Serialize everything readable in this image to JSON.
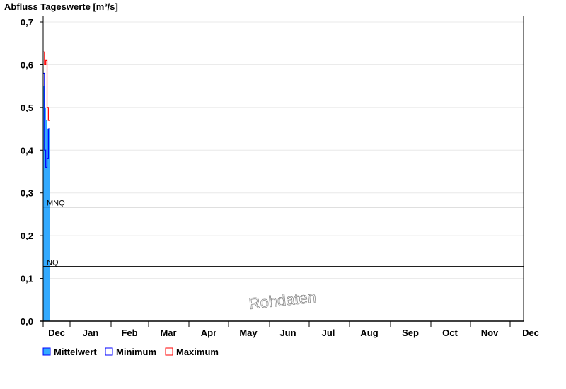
{
  "chart_data": {
    "type": "line",
    "title": "Abfluss Tageswerte [m³/s]",
    "ylim": [
      0,
      0.7
    ],
    "yticks": [
      "0,0",
      "0,1",
      "0,2",
      "0,3",
      "0,4",
      "0,5",
      "0,6",
      "0,7"
    ],
    "xticks": [
      "Dec",
      "Jan",
      "Feb",
      "Mar",
      "Apr",
      "May",
      "Jun",
      "Jul",
      "Aug",
      "Sep",
      "Oct",
      "Nov",
      "Dec"
    ],
    "grid": true,
    "legend_placement": "bottom-left",
    "series": [
      {
        "name": "Mittelwert",
        "color": "#33aaff",
        "style": "bar",
        "values": [
          0.55,
          0.5,
          0.47,
          0.45,
          0.45
        ]
      },
      {
        "name": "Minimum",
        "color": "#0000ff",
        "style": "step",
        "values": [
          0.58,
          0.4,
          0.36,
          0.38,
          0.45
        ]
      },
      {
        "name": "Maximum",
        "color": "#ff0000",
        "style": "step",
        "values": [
          0.63,
          0.6,
          0.61,
          0.5,
          0.47
        ]
      }
    ],
    "reference_lines": [
      {
        "label": "MNQ",
        "value": 0.267
      },
      {
        "label": "NQ",
        "value": 0.128
      }
    ],
    "watermark": "Rohdaten"
  }
}
